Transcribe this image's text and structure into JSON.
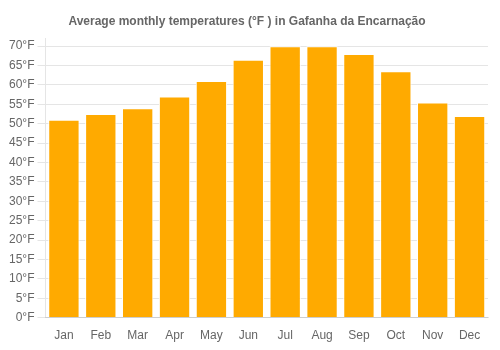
{
  "chart_data": {
    "type": "bar",
    "title": "Average monthly temperatures (°F ) in Gafanha da Encarnação",
    "categories": [
      "Jan",
      "Feb",
      "Mar",
      "Apr",
      "May",
      "Jun",
      "Jul",
      "Aug",
      "Sep",
      "Oct",
      "Nov",
      "Dec"
    ],
    "values": [
      51,
      52.5,
      54,
      57,
      61,
      66.5,
      70,
      70,
      68,
      63.5,
      55.5,
      52
    ],
    "color": "#FFAA00",
    "ylim": [
      0,
      72
    ],
    "yticks": [
      {
        "value": 0,
        "label": "0°F"
      },
      {
        "value": 5,
        "label": "5°F"
      },
      {
        "value": 10,
        "label": "10°F"
      },
      {
        "value": 15,
        "label": "15°F"
      },
      {
        "value": 20,
        "label": "20°F"
      },
      {
        "value": 25,
        "label": "25°F"
      },
      {
        "value": 30,
        "label": "30°F"
      },
      {
        "value": 35,
        "label": "35°F"
      },
      {
        "value": 40,
        "label": "40°F"
      },
      {
        "value": 45,
        "label": "45°F"
      },
      {
        "value": 50,
        "label": "50°F"
      },
      {
        "value": 55,
        "label": "55°F"
      },
      {
        "value": 60,
        "label": "60°F"
      },
      {
        "value": 65,
        "label": "65°F"
      },
      {
        "value": 70,
        "label": "70°F"
      }
    ],
    "grid": true
  }
}
